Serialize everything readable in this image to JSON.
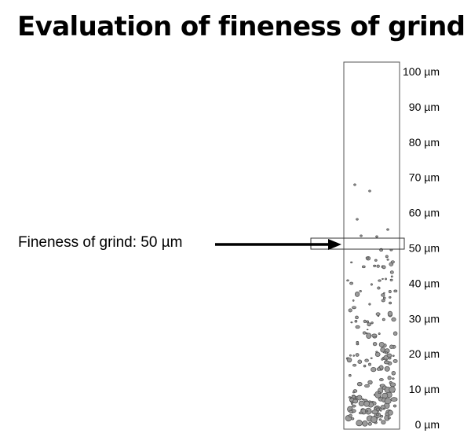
{
  "title": "Evaluation of fineness of grind",
  "result": {
    "label": "Fineness of grind: 50 µm",
    "value_um": 50
  },
  "scale": {
    "unit": "µm",
    "min": 0,
    "max": 100,
    "ticks": [
      {
        "value": 100,
        "label": "100 µm"
      },
      {
        "value": 90,
        "label": "90 µm"
      },
      {
        "value": 80,
        "label": "80 µm"
      },
      {
        "value": 70,
        "label": "70 µm"
      },
      {
        "value": 60,
        "label": "60 µm"
      },
      {
        "value": 50,
        "label": "50 µm"
      },
      {
        "value": 40,
        "label": "40 µm"
      },
      {
        "value": 30,
        "label": "30 µm"
      },
      {
        "value": 20,
        "label": "20 µm"
      },
      {
        "value": 10,
        "label": "10 µm"
      },
      {
        "value": 0,
        "label": "0 µm"
      }
    ]
  },
  "colors": {
    "particle_fill": "#9a9a9a",
    "particle_stroke": "#4a4a4a",
    "gauge_border": "#555555",
    "arrow": "#000000"
  }
}
